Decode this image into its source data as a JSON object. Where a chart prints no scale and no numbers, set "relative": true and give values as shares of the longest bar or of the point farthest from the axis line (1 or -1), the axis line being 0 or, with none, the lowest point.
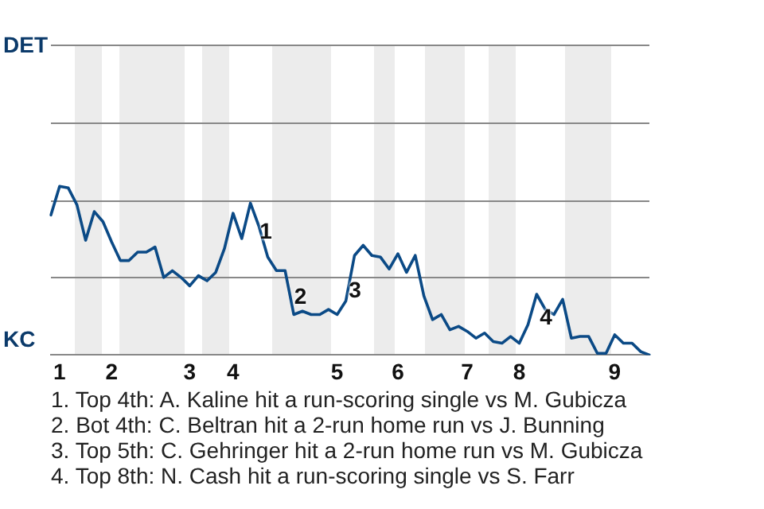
{
  "chart_data": {
    "type": "line",
    "relative": true,
    "legend": false,
    "marker": "none",
    "line_style": "solid",
    "categories": [
      null,
      "1",
      null,
      null,
      null,
      null,
      null,
      "2",
      null,
      null,
      null,
      null,
      null,
      null,
      null,
      null,
      "3",
      null,
      null,
      null,
      null,
      "4",
      null,
      null,
      null,
      null,
      null,
      null,
      null,
      null,
      null,
      null,
      null,
      "5",
      null,
      null,
      null,
      null,
      null,
      null,
      "6",
      null,
      null,
      null,
      null,
      null,
      null,
      null,
      "7",
      null,
      null,
      null,
      null,
      null,
      "8",
      null,
      null,
      null,
      null,
      null,
      null,
      null,
      null,
      null,
      null,
      "9",
      null,
      null,
      null,
      null
    ],
    "series": [
      {
        "color": "#0b4a86",
        "values": [
          0.83,
          1,
          0.99,
          0.89,
          0.68,
          0.85,
          0.79,
          0.67,
          0.56,
          0.56,
          0.61,
          0.61,
          0.64,
          0.46,
          0.5,
          0.46,
          0.41,
          0.47,
          0.44,
          0.49,
          0.63,
          0.84,
          0.69,
          0.9,
          0.76,
          0.58,
          0.5,
          0.5,
          0.24,
          0.26,
          0.24,
          0.24,
          0.27,
          0.24,
          0.32,
          0.59,
          0.65,
          0.59,
          0.58,
          0.51,
          0.6,
          0.49,
          0.59,
          0.35,
          0.21,
          0.24,
          0.15,
          0.17,
          0.14,
          0.1,
          0.13,
          0.08,
          0.07,
          0.11,
          0.07,
          0.18,
          0.36,
          0.27,
          0.24,
          0.33,
          0.1,
          0.11,
          0.11,
          0.01,
          0.01,
          0.12,
          0.07,
          0.07,
          0.02,
          0
        ]
      }
    ],
    "ref_lines": [
      {
        "axis": "y",
        "value": 0.46,
        "color": "#888888"
      },
      {
        "axis": "y",
        "value": 0.92,
        "color": "#888888"
      },
      {
        "axis": "y",
        "value": 1.38,
        "color": "#888888"
      },
      {
        "axis": "y",
        "value": 1.84,
        "color": "#888888"
      }
    ],
    "annotations": [
      "DET",
      "KC",
      "1",
      "2",
      "3",
      "4",
      "1. Top 4th: A. Kaline hit a run-scoring single vs M. Gubicza",
      "2. Bot 4th: C. Beltran hit a 2-run home run vs J. Bunning",
      "3. Top 5th: C. Gehringer hit a 2-run home run vs M. Gubicza",
      "4. Top 8th: N. Cash hit a run-scoring single vs S. Farr"
    ]
  }
}
